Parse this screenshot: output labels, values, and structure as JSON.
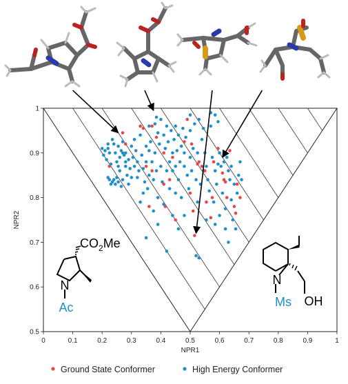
{
  "chart_data": {
    "type": "scatter",
    "xlabel": "NPR1",
    "ylabel": "NPR2",
    "xlim": [
      0,
      1
    ],
    "ylim": [
      0.5,
      1
    ],
    "x_ticks": [
      "0",
      "0.1",
      "0.2",
      "0.3",
      "0.4",
      "0.5",
      "0.6",
      "0.7",
      "0.8",
      "0.9",
      "1"
    ],
    "y_ticks": [
      "0.5",
      "0.6",
      "0.7",
      "0.8",
      "0.9",
      "1"
    ],
    "grid": false,
    "legend_position": "bottom",
    "series": [
      {
        "name": "Ground State Conformer",
        "color": "#e8474a",
        "points": [
          [
            0.27,
            0.945
          ],
          [
            0.28,
            0.92
          ],
          [
            0.33,
            0.96
          ],
          [
            0.35,
            0.87
          ],
          [
            0.36,
            0.78
          ],
          [
            0.37,
            0.96
          ],
          [
            0.385,
            0.935
          ],
          [
            0.37,
            0.86
          ],
          [
            0.41,
            0.9
          ],
          [
            0.41,
            0.83
          ],
          [
            0.415,
            0.78
          ],
          [
            0.45,
            0.75
          ],
          [
            0.48,
            0.925
          ],
          [
            0.49,
            0.975
          ],
          [
            0.5,
            0.81
          ],
          [
            0.505,
            0.92
          ],
          [
            0.51,
            0.77
          ],
          [
            0.515,
            0.715
          ],
          [
            0.525,
            0.875
          ],
          [
            0.53,
            0.88
          ],
          [
            0.54,
            0.87
          ],
          [
            0.55,
            0.86
          ],
          [
            0.555,
            0.79
          ],
          [
            0.57,
            0.755
          ],
          [
            0.575,
            0.8
          ],
          [
            0.58,
            0.88
          ],
          [
            0.595,
            0.91
          ],
          [
            0.61,
            0.855
          ],
          [
            0.615,
            0.84
          ],
          [
            0.62,
            0.835
          ],
          [
            0.625,
            0.8
          ],
          [
            0.635,
            0.905
          ],
          [
            0.65,
            0.78
          ],
          [
            0.655,
            0.765
          ],
          [
            0.66,
            0.83
          ],
          [
            0.67,
            0.8
          ],
          [
            0.225,
            0.87
          ],
          [
            0.34,
            0.955
          ],
          [
            0.43,
            0.84
          ],
          [
            0.44,
            0.89
          ]
        ]
      },
      {
        "name": "High Energy Conformer",
        "color": "#1f8fc9",
        "points": [
          [
            0.2,
            0.91
          ],
          [
            0.205,
            0.895
          ],
          [
            0.21,
            0.905
          ],
          [
            0.215,
            0.885
          ],
          [
            0.22,
            0.91
          ],
          [
            0.22,
            0.845
          ],
          [
            0.225,
            0.84
          ],
          [
            0.23,
            0.83
          ],
          [
            0.235,
            0.835
          ],
          [
            0.24,
            0.84
          ],
          [
            0.245,
            0.83
          ],
          [
            0.25,
            0.845
          ],
          [
            0.255,
            0.835
          ],
          [
            0.26,
            0.86
          ],
          [
            0.265,
            0.825
          ],
          [
            0.27,
            0.84
          ],
          [
            0.22,
            0.92
          ],
          [
            0.225,
            0.9
          ],
          [
            0.23,
            0.875
          ],
          [
            0.235,
            0.93
          ],
          [
            0.24,
            0.92
          ],
          [
            0.245,
            0.9
          ],
          [
            0.25,
            0.88
          ],
          [
            0.255,
            0.915
          ],
          [
            0.26,
            0.89
          ],
          [
            0.265,
            0.905
          ],
          [
            0.27,
            0.925
          ],
          [
            0.275,
            0.895
          ],
          [
            0.28,
            0.9
          ],
          [
            0.28,
            0.87
          ],
          [
            0.285,
            0.85
          ],
          [
            0.29,
            0.885
          ],
          [
            0.295,
            0.865
          ],
          [
            0.3,
            0.845
          ],
          [
            0.3,
            0.915
          ],
          [
            0.305,
            0.89
          ],
          [
            0.31,
            0.87
          ],
          [
            0.31,
            0.93
          ],
          [
            0.315,
            0.905
          ],
          [
            0.32,
            0.88
          ],
          [
            0.32,
            0.845
          ],
          [
            0.325,
            0.86
          ],
          [
            0.33,
            0.94
          ],
          [
            0.335,
            0.895
          ],
          [
            0.34,
            0.865
          ],
          [
            0.345,
            0.835
          ],
          [
            0.35,
            0.915
          ],
          [
            0.35,
            0.88
          ],
          [
            0.355,
            0.82
          ],
          [
            0.36,
            0.905
          ],
          [
            0.36,
            0.85
          ],
          [
            0.365,
            0.925
          ],
          [
            0.37,
            0.88
          ],
          [
            0.375,
            0.84
          ],
          [
            0.38,
            0.9
          ],
          [
            0.38,
            0.965
          ],
          [
            0.385,
            0.86
          ],
          [
            0.39,
            0.945
          ],
          [
            0.39,
            0.8
          ],
          [
            0.395,
            0.92
          ],
          [
            0.4,
            0.87
          ],
          [
            0.4,
            0.975
          ],
          [
            0.405,
            0.835
          ],
          [
            0.41,
            0.94
          ],
          [
            0.415,
            0.91
          ],
          [
            0.42,
            0.86
          ],
          [
            0.42,
            0.96
          ],
          [
            0.425,
            0.925
          ],
          [
            0.43,
            0.88
          ],
          [
            0.43,
            0.82
          ],
          [
            0.435,
            0.95
          ],
          [
            0.44,
            0.9
          ],
          [
            0.44,
            0.86
          ],
          [
            0.445,
            0.93
          ],
          [
            0.45,
            0.87
          ],
          [
            0.45,
            0.96
          ],
          [
            0.455,
            0.905
          ],
          [
            0.46,
            0.84
          ],
          [
            0.46,
            0.94
          ],
          [
            0.465,
            0.88
          ],
          [
            0.47,
            0.915
          ],
          [
            0.47,
            0.8
          ],
          [
            0.475,
            0.955
          ],
          [
            0.48,
            0.87
          ],
          [
            0.48,
            0.9
          ],
          [
            0.485,
            0.935
          ],
          [
            0.49,
            0.85
          ],
          [
            0.495,
            0.82
          ],
          [
            0.5,
            0.89
          ],
          [
            0.5,
            0.95
          ],
          [
            0.505,
            0.86
          ],
          [
            0.51,
            0.91
          ],
          [
            0.515,
            0.965
          ],
          [
            0.52,
            0.84
          ],
          [
            0.52,
            0.67
          ],
          [
            0.525,
            0.9
          ],
          [
            0.53,
            0.665
          ],
          [
            0.535,
            0.83
          ],
          [
            0.54,
            0.93
          ],
          [
            0.545,
            0.86
          ],
          [
            0.55,
            0.9
          ],
          [
            0.555,
            0.87
          ],
          [
            0.56,
            0.84
          ],
          [
            0.565,
            0.815
          ],
          [
            0.57,
            0.96
          ],
          [
            0.575,
            0.89
          ],
          [
            0.58,
            0.79
          ],
          [
            0.585,
            0.86
          ],
          [
            0.59,
            0.83
          ],
          [
            0.595,
            0.875
          ],
          [
            0.6,
            0.76
          ],
          [
            0.6,
            0.9
          ],
          [
            0.605,
            0.87
          ],
          [
            0.61,
            0.81
          ],
          [
            0.615,
            0.88
          ],
          [
            0.62,
            0.73
          ],
          [
            0.625,
            0.89
          ],
          [
            0.63,
            0.86
          ],
          [
            0.635,
            0.84
          ],
          [
            0.64,
            0.87
          ],
          [
            0.645,
            0.75
          ],
          [
            0.65,
            0.83
          ],
          [
            0.655,
            0.73
          ],
          [
            0.66,
            0.81
          ],
          [
            0.665,
            0.85
          ],
          [
            0.67,
            0.88
          ],
          [
            0.675,
            0.84
          ],
          [
            0.35,
            0.71
          ],
          [
            0.42,
            0.68
          ],
          [
            0.44,
            0.76
          ],
          [
            0.46,
            0.73
          ],
          [
            0.48,
            0.76
          ],
          [
            0.33,
            0.79
          ],
          [
            0.375,
            0.77
          ],
          [
            0.39,
            0.74
          ],
          [
            0.41,
            0.785
          ],
          [
            0.57,
            0.99
          ],
          [
            0.585,
            0.985
          ],
          [
            0.595,
            0.97
          ],
          [
            0.53,
            0.975
          ],
          [
            0.545,
            0.955
          ],
          [
            0.5,
            0.985
          ],
          [
            0.525,
            0.79
          ],
          [
            0.555,
            0.75
          ],
          [
            0.585,
            0.74
          ],
          [
            0.62,
            0.775
          ],
          [
            0.64,
            0.795
          ],
          [
            0.63,
            0.7
          ],
          [
            0.28,
            0.88
          ],
          [
            0.27,
            0.9
          ],
          [
            0.255,
            0.87
          ],
          [
            0.29,
            0.83
          ],
          [
            0.34,
            0.81
          ],
          [
            0.36,
            0.96
          ],
          [
            0.385,
            0.98
          ],
          [
            0.45,
            0.81
          ]
        ]
      }
    ],
    "triangle": [
      [
        0,
        1
      ],
      [
        0.5,
        0.5
      ],
      [
        1,
        1
      ]
    ],
    "isolines": [
      0.1,
      0.2,
      0.3,
      0.4,
      0.5,
      0.6,
      0.7,
      0.8,
      0.9
    ],
    "arrows": [
      {
        "from": [
          0.1,
          1.04
        ],
        "to": [
          0.255,
          0.945
        ]
      },
      {
        "from": [
          0.345,
          1.04
        ],
        "to": [
          0.375,
          0.995
        ]
      },
      {
        "from": [
          0.575,
          1.04
        ],
        "to": [
          0.52,
          0.72
        ]
      },
      {
        "from": [
          0.745,
          1.04
        ],
        "to": [
          0.61,
          0.89
        ]
      }
    ]
  },
  "legend": {
    "ground": "Ground State Conformer",
    "high": "High Energy Conformer"
  },
  "structures": {
    "left": {
      "substituent": "CO2Me",
      "n_label": "N",
      "n_group": "Ac"
    },
    "right": {
      "n_label": "N",
      "n_group": "Ms",
      "side_group": "OH"
    }
  },
  "models": [
    "model-1",
    "model-2",
    "model-3",
    "model-4"
  ]
}
